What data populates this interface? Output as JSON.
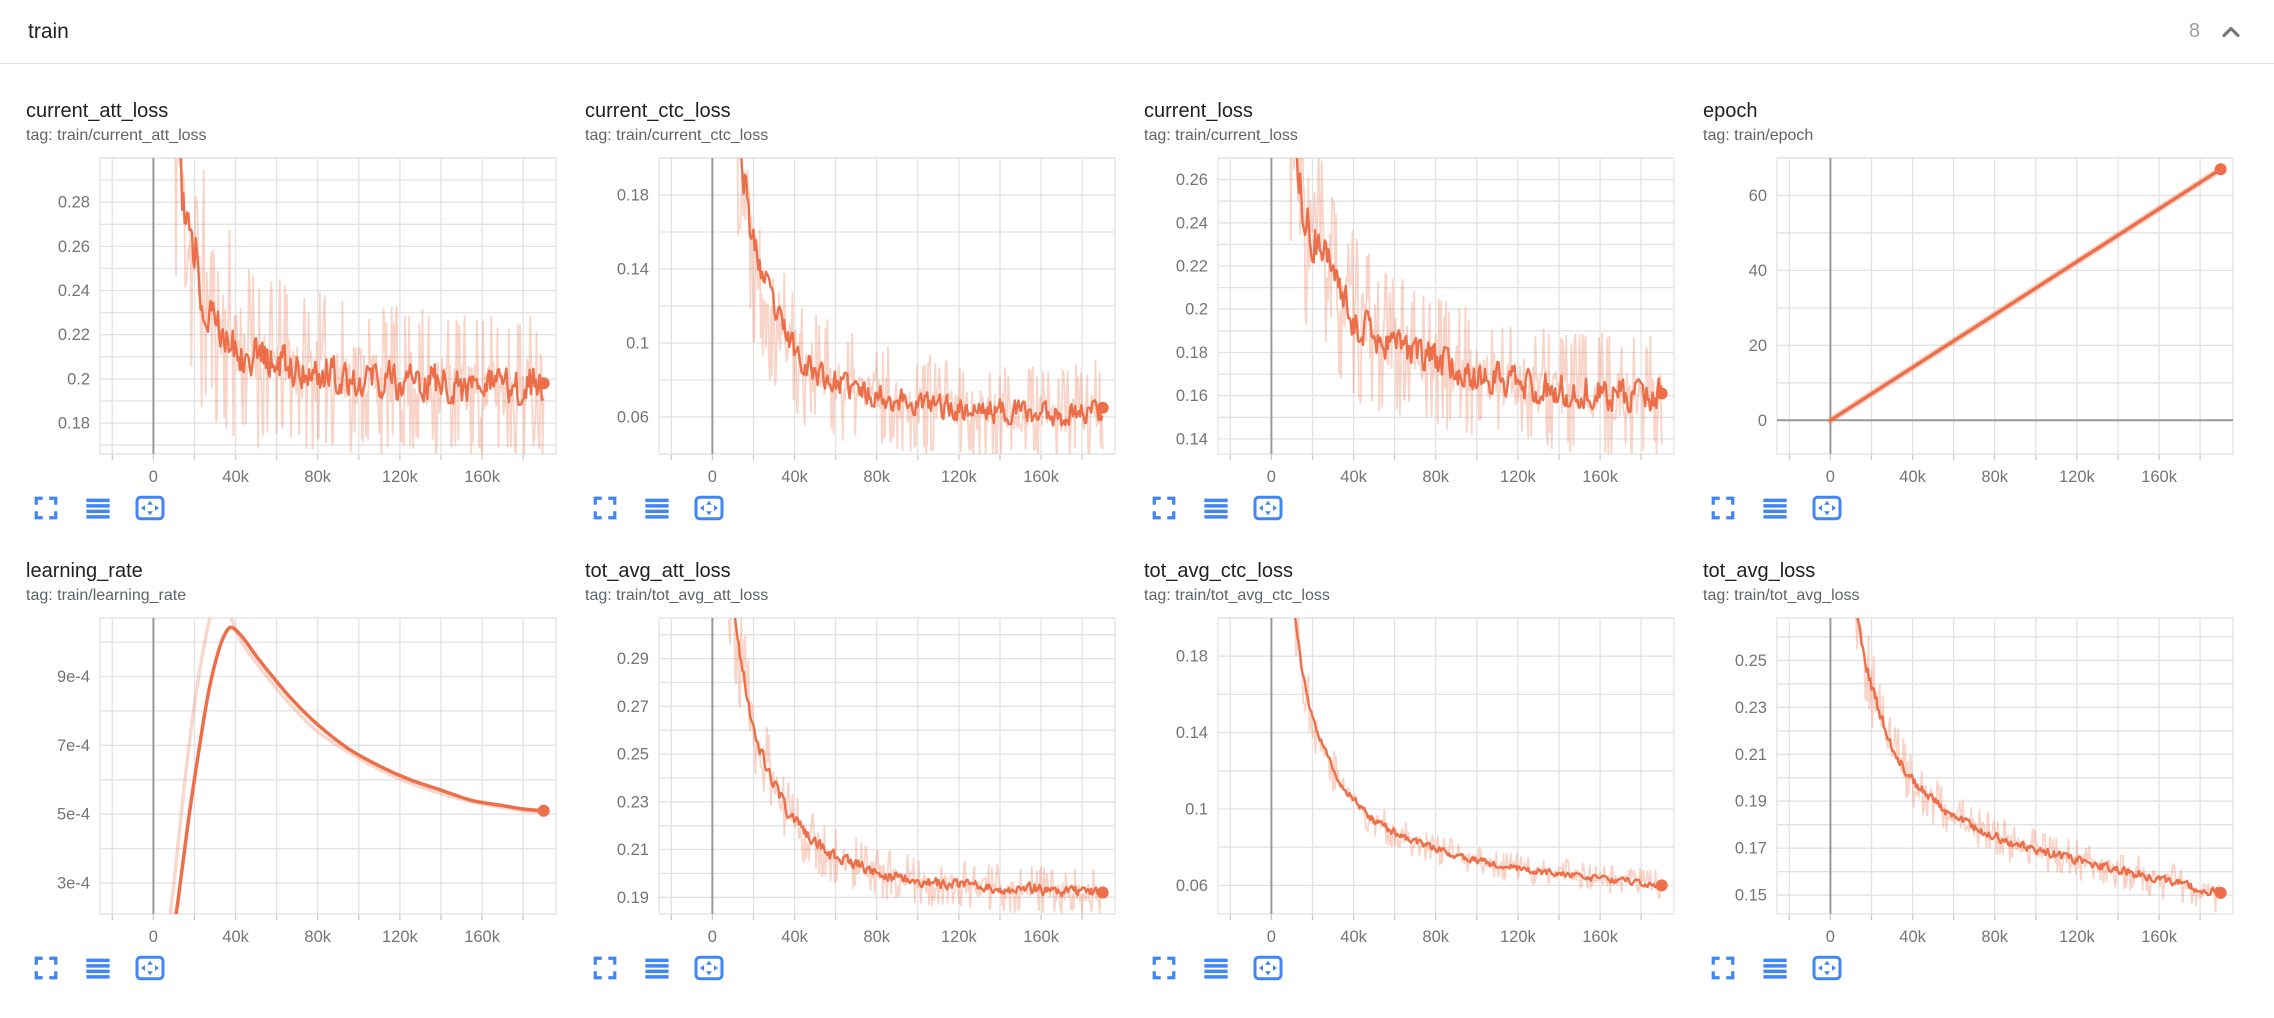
{
  "header": {
    "title": "train",
    "count": "8",
    "collapse_icon": "chevron-up-icon"
  },
  "colors": {
    "accent": "#ec6f4a",
    "raw_opacity": 0.3,
    "grid": "#e2e2e2",
    "zero_axis": "#999999",
    "tick_text": "#757575",
    "title_text": "#212121",
    "tag_text": "#5f6368",
    "icon_blue": "#4285f4",
    "divider": "#e0e0e0"
  },
  "toolbar_icons": [
    {
      "name": "expand-card-icon"
    },
    {
      "name": "data-table-icon"
    },
    {
      "name": "fit-domain-icon"
    }
  ],
  "x_axis": {
    "range": [
      -26000,
      196000
    ],
    "minor": 20000,
    "ticks": [
      [
        0,
        "0"
      ],
      [
        40000,
        "40k"
      ],
      [
        80000,
        "80k"
      ],
      [
        120000,
        "120k"
      ],
      [
        160000,
        "160k"
      ]
    ]
  },
  "chart_data": [
    {
      "type": "line",
      "title": "current_att_loss",
      "tag": "tag: train/current_att_loss",
      "style": "noisy",
      "seed": 11,
      "main_amp": 0.0085,
      "raw_amp": 0.02,
      "y_axis": {
        "range": [
          0.3,
          0.166
        ],
        "minor": 0.01,
        "ticks": [
          [
            0.28,
            "0.28"
          ],
          [
            0.26,
            "0.26"
          ],
          [
            0.24,
            "0.24"
          ],
          [
            0.22,
            "0.22"
          ],
          [
            0.2,
            "0.2"
          ],
          [
            0.18,
            "0.18"
          ]
        ]
      },
      "smoothed": [
        [
          8000,
          0.345
        ],
        [
          11000,
          0.315
        ],
        [
          13000,
          0.298
        ],
        [
          15000,
          0.272
        ],
        [
          17000,
          0.268
        ],
        [
          19000,
          0.252
        ],
        [
          21000,
          0.258
        ],
        [
          23000,
          0.243
        ],
        [
          26000,
          0.232
        ],
        [
          29000,
          0.236
        ],
        [
          32000,
          0.226
        ],
        [
          36000,
          0.222
        ],
        [
          40000,
          0.215
        ],
        [
          46000,
          0.212
        ],
        [
          52000,
          0.209
        ],
        [
          60000,
          0.207
        ],
        [
          70000,
          0.205
        ],
        [
          80000,
          0.204
        ],
        [
          90000,
          0.202
        ],
        [
          100000,
          0.201
        ],
        [
          110000,
          0.2
        ],
        [
          120000,
          0.199
        ],
        [
          130000,
          0.198
        ],
        [
          140000,
          0.198
        ],
        [
          150000,
          0.197
        ],
        [
          160000,
          0.196
        ],
        [
          170000,
          0.196
        ],
        [
          180000,
          0.197
        ],
        [
          190000,
          0.198
        ]
      ],
      "end_dot": [
        190000,
        0.198
      ]
    },
    {
      "type": "line",
      "title": "current_ctc_loss",
      "tag": "tag: train/current_ctc_loss",
      "style": "noisy",
      "seed": 22,
      "main_amp": 0.0065,
      "raw_amp": 0.016,
      "y_axis": {
        "range": [
          0.2,
          0.04
        ],
        "minor": 0.02,
        "ticks": [
          [
            0.18,
            "0.18"
          ],
          [
            0.14,
            "0.14"
          ],
          [
            0.1,
            "0.1"
          ],
          [
            0.06,
            "0.06"
          ]
        ]
      },
      "smoothed": [
        [
          8000,
          0.3
        ],
        [
          10000,
          0.26
        ],
        [
          12000,
          0.225
        ],
        [
          14000,
          0.2
        ],
        [
          16000,
          0.185
        ],
        [
          18000,
          0.165
        ],
        [
          20000,
          0.152
        ],
        [
          22000,
          0.148
        ],
        [
          24000,
          0.138
        ],
        [
          27000,
          0.128
        ],
        [
          30000,
          0.118
        ],
        [
          34000,
          0.108
        ],
        [
          38000,
          0.1
        ],
        [
          43000,
          0.092
        ],
        [
          48000,
          0.087
        ],
        [
          54000,
          0.082
        ],
        [
          62000,
          0.078
        ],
        [
          72000,
          0.074
        ],
        [
          84000,
          0.071
        ],
        [
          96000,
          0.068
        ],
        [
          110000,
          0.066
        ],
        [
          125000,
          0.064
        ],
        [
          140000,
          0.063
        ],
        [
          155000,
          0.062
        ],
        [
          170000,
          0.062
        ],
        [
          180000,
          0.063
        ],
        [
          190000,
          0.065
        ]
      ],
      "end_dot": [
        190000,
        0.065
      ]
    },
    {
      "type": "line",
      "title": "current_loss",
      "tag": "tag: train/current_loss",
      "style": "noisy",
      "seed": 33,
      "main_amp": 0.0075,
      "raw_amp": 0.017,
      "y_axis": {
        "range": [
          0.27,
          0.133
        ],
        "minor": 0.01,
        "ticks": [
          [
            0.26,
            "0.26"
          ],
          [
            0.24,
            "0.24"
          ],
          [
            0.22,
            "0.22"
          ],
          [
            0.2,
            "0.2"
          ],
          [
            0.18,
            "0.18"
          ],
          [
            0.16,
            "0.16"
          ],
          [
            0.14,
            "0.14"
          ]
        ]
      },
      "smoothed": [
        [
          8000,
          0.32
        ],
        [
          10000,
          0.295
        ],
        [
          12000,
          0.272
        ],
        [
          14000,
          0.255
        ],
        [
          16000,
          0.248
        ],
        [
          18000,
          0.238
        ],
        [
          20000,
          0.232
        ],
        [
          23000,
          0.235
        ],
        [
          26000,
          0.222
        ],
        [
          29000,
          0.215
        ],
        [
          32000,
          0.208
        ],
        [
          36000,
          0.202
        ],
        [
          40000,
          0.196
        ],
        [
          46000,
          0.191
        ],
        [
          52000,
          0.187
        ],
        [
          60000,
          0.183
        ],
        [
          70000,
          0.179
        ],
        [
          80000,
          0.176
        ],
        [
          90000,
          0.173
        ],
        [
          100000,
          0.17
        ],
        [
          110000,
          0.168
        ],
        [
          120000,
          0.166
        ],
        [
          130000,
          0.164
        ],
        [
          140000,
          0.163
        ],
        [
          150000,
          0.162
        ],
        [
          160000,
          0.161
        ],
        [
          170000,
          0.16
        ],
        [
          180000,
          0.16
        ],
        [
          190000,
          0.161
        ]
      ],
      "end_dot": [
        190000,
        0.161
      ]
    },
    {
      "type": "line",
      "title": "epoch",
      "tag": "tag: train/epoch",
      "style": "smooth",
      "seed": 44,
      "zero_hline": true,
      "glow_width": 7,
      "y_axis": {
        "range": [
          70,
          -9
        ],
        "minor": 10,
        "ticks": [
          [
            60,
            "60"
          ],
          [
            40,
            "40"
          ],
          [
            20,
            "20"
          ],
          [
            0,
            "0"
          ]
        ]
      },
      "smoothed": [
        [
          0,
          0
        ],
        [
          190000,
          67
        ]
      ],
      "raw": [
        [
          0,
          0
        ],
        [
          190000,
          67
        ]
      ],
      "end_dot": [
        190000,
        67
      ]
    },
    {
      "type": "line",
      "title": "learning_rate",
      "tag": "tag: train/learning_rate",
      "style": "smooth",
      "seed": 55,
      "glow_width": 3.5,
      "y_axis": {
        "range": [
          0.00107,
          0.00021
        ],
        "minor": 0.0001,
        "ticks": [
          [
            0.0009,
            "9e-4"
          ],
          [
            0.0007,
            "7e-4"
          ],
          [
            0.0005,
            "5e-4"
          ],
          [
            0.0003,
            "3e-4"
          ]
        ]
      },
      "smoothed": [
        [
          7000,
          5e-05
        ],
        [
          12000,
          0.00025
        ],
        [
          17000,
          0.00048
        ],
        [
          22000,
          0.00068
        ],
        [
          27000,
          0.00086
        ],
        [
          32000,
          0.00098
        ],
        [
          36000,
          0.001035
        ],
        [
          39000,
          0.00104
        ],
        [
          44000,
          0.00101
        ],
        [
          50000,
          0.00096
        ],
        [
          58000,
          0.0009
        ],
        [
          68000,
          0.00083
        ],
        [
          80000,
          0.00076
        ],
        [
          95000,
          0.00069
        ],
        [
          110000,
          0.00064
        ],
        [
          125000,
          0.0006
        ],
        [
          140000,
          0.00057
        ],
        [
          155000,
          0.00054
        ],
        [
          170000,
          0.000525
        ],
        [
          180000,
          0.000515
        ],
        [
          190000,
          0.00051
        ]
      ],
      "raw": [
        [
          5000,
          5e-05
        ],
        [
          10000,
          0.0003
        ],
        [
          15000,
          0.00058
        ],
        [
          20000,
          0.00082
        ],
        [
          25000,
          0.001
        ],
        [
          29000,
          0.0011
        ],
        [
          33000,
          0.00113
        ],
        [
          37000,
          0.00108
        ],
        [
          43000,
          0.001
        ],
        [
          50000,
          0.00094
        ],
        [
          58000,
          0.00088
        ],
        [
          68000,
          0.00081
        ],
        [
          80000,
          0.00074
        ],
        [
          95000,
          0.00068
        ],
        [
          110000,
          0.00063
        ],
        [
          125000,
          0.00059
        ],
        [
          140000,
          0.00056
        ],
        [
          155000,
          0.000535
        ],
        [
          170000,
          0.00052
        ],
        [
          180000,
          0.00051
        ],
        [
          190000,
          0.000505
        ]
      ],
      "end_dot": [
        190000,
        0.00051
      ]
    },
    {
      "type": "line",
      "title": "tot_avg_att_loss",
      "tag": "tag: train/tot_avg_att_loss",
      "style": "noisy",
      "seed": 66,
      "main_amp": 0.0022,
      "raw_amp": 0.006,
      "y_axis": {
        "range": [
          0.307,
          0.183
        ],
        "minor": 0.01,
        "ticks": [
          [
            0.29,
            "0.29"
          ],
          [
            0.27,
            "0.27"
          ],
          [
            0.25,
            "0.25"
          ],
          [
            0.23,
            "0.23"
          ],
          [
            0.21,
            "0.21"
          ],
          [
            0.19,
            "0.19"
          ]
        ]
      },
      "smoothed": [
        [
          8000,
          0.325
        ],
        [
          10000,
          0.312
        ],
        [
          12000,
          0.3
        ],
        [
          14000,
          0.289
        ],
        [
          16000,
          0.279
        ],
        [
          18000,
          0.27
        ],
        [
          20000,
          0.262
        ],
        [
          22000,
          0.256
        ],
        [
          24000,
          0.25
        ],
        [
          27000,
          0.243
        ],
        [
          30000,
          0.237
        ],
        [
          33000,
          0.232
        ],
        [
          36000,
          0.227
        ],
        [
          40000,
          0.222
        ],
        [
          44000,
          0.218
        ],
        [
          48000,
          0.215
        ],
        [
          53000,
          0.211
        ],
        [
          58000,
          0.208
        ],
        [
          64000,
          0.206
        ],
        [
          70000,
          0.204
        ],
        [
          78000,
          0.201
        ],
        [
          86000,
          0.199
        ],
        [
          95000,
          0.198
        ],
        [
          105000,
          0.196
        ],
        [
          115000,
          0.1955
        ],
        [
          125000,
          0.195
        ],
        [
          135000,
          0.194
        ],
        [
          145000,
          0.1935
        ],
        [
          155000,
          0.194
        ],
        [
          165000,
          0.1925
        ],
        [
          175000,
          0.193
        ],
        [
          182000,
          0.1915
        ],
        [
          190000,
          0.192
        ]
      ],
      "end_dot": [
        190000,
        0.192
      ]
    },
    {
      "type": "line",
      "title": "tot_avg_ctc_loss",
      "tag": "tag: train/tot_avg_ctc_loss",
      "style": "noisy",
      "seed": 77,
      "main_amp": 0.0016,
      "raw_amp": 0.0045,
      "y_axis": {
        "range": [
          0.2,
          0.045
        ],
        "minor": 0.02,
        "ticks": [
          [
            0.18,
            "0.18"
          ],
          [
            0.14,
            "0.14"
          ],
          [
            0.1,
            "0.1"
          ],
          [
            0.06,
            "0.06"
          ]
        ]
      },
      "smoothed": [
        [
          8000,
          0.24
        ],
        [
          10000,
          0.215
        ],
        [
          12000,
          0.196
        ],
        [
          14000,
          0.18
        ],
        [
          16000,
          0.167
        ],
        [
          18000,
          0.156
        ],
        [
          20000,
          0.148
        ],
        [
          22000,
          0.141
        ],
        [
          24000,
          0.135
        ],
        [
          27000,
          0.128
        ],
        [
          30000,
          0.121
        ],
        [
          33000,
          0.115
        ],
        [
          36000,
          0.11
        ],
        [
          40000,
          0.105
        ],
        [
          44000,
          0.1
        ],
        [
          48000,
          0.096
        ],
        [
          53000,
          0.092
        ],
        [
          58000,
          0.089
        ],
        [
          64000,
          0.086
        ],
        [
          70000,
          0.083
        ],
        [
          78000,
          0.08
        ],
        [
          86000,
          0.077
        ],
        [
          95000,
          0.074
        ],
        [
          105000,
          0.072
        ],
        [
          115000,
          0.07
        ],
        [
          125000,
          0.068
        ],
        [
          135000,
          0.067
        ],
        [
          145000,
          0.066
        ],
        [
          155000,
          0.064
        ],
        [
          165000,
          0.063
        ],
        [
          175000,
          0.062
        ],
        [
          182000,
          0.061
        ],
        [
          190000,
          0.06
        ]
      ],
      "end_dot": [
        190000,
        0.06
      ]
    },
    {
      "type": "line",
      "title": "tot_avg_loss",
      "tag": "tag: train/tot_avg_loss",
      "style": "noisy",
      "seed": 88,
      "main_amp": 0.0018,
      "raw_amp": 0.005,
      "y_axis": {
        "range": [
          0.268,
          0.142
        ],
        "minor": 0.01,
        "ticks": [
          [
            0.25,
            "0.25"
          ],
          [
            0.23,
            "0.23"
          ],
          [
            0.21,
            "0.21"
          ],
          [
            0.19,
            "0.19"
          ],
          [
            0.17,
            "0.17"
          ],
          [
            0.15,
            "0.15"
          ]
        ]
      },
      "smoothed": [
        [
          8000,
          0.3
        ],
        [
          10000,
          0.287
        ],
        [
          12000,
          0.275
        ],
        [
          14000,
          0.264
        ],
        [
          16000,
          0.254
        ],
        [
          18000,
          0.246
        ],
        [
          20000,
          0.239
        ],
        [
          22000,
          0.233
        ],
        [
          24000,
          0.227
        ],
        [
          27000,
          0.22
        ],
        [
          30000,
          0.214
        ],
        [
          33000,
          0.209
        ],
        [
          36000,
          0.204
        ],
        [
          40000,
          0.199
        ],
        [
          44000,
          0.195
        ],
        [
          48000,
          0.192
        ],
        [
          53000,
          0.188
        ],
        [
          58000,
          0.185
        ],
        [
          64000,
          0.182
        ],
        [
          70000,
          0.179
        ],
        [
          78000,
          0.176
        ],
        [
          86000,
          0.173
        ],
        [
          95000,
          0.171
        ],
        [
          105000,
          0.168
        ],
        [
          115000,
          0.166
        ],
        [
          125000,
          0.164
        ],
        [
          135000,
          0.162
        ],
        [
          145000,
          0.16
        ],
        [
          155000,
          0.158
        ],
        [
          165000,
          0.156
        ],
        [
          175000,
          0.154
        ],
        [
          182000,
          0.152
        ],
        [
          190000,
          0.151
        ]
      ],
      "end_dot": [
        190000,
        0.151
      ]
    }
  ]
}
